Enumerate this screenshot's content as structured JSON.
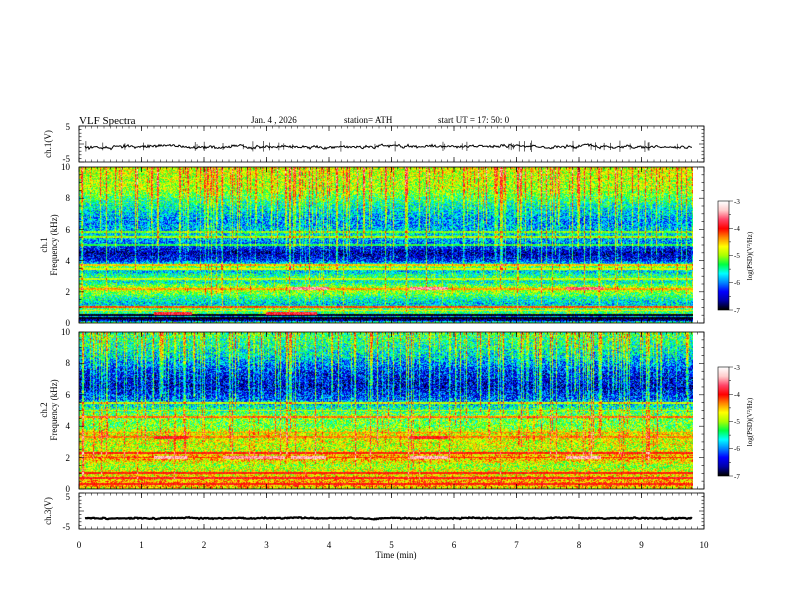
{
  "header": {
    "title": "VLF  Spectra",
    "date": "Jan. 4  , 2026",
    "station": "station= ATH",
    "start_ut": "start  UT  =   17: 50: 0"
  },
  "chart_data": {
    "type": "heatmap",
    "x_label": "Time  (min)",
    "x_range": [
      0,
      10
    ],
    "x_ticks": [
      "0",
      "1",
      "2",
      "3",
      "4",
      "5",
      "6",
      "7",
      "8",
      "9",
      "10"
    ],
    "data_end_min": 9.8,
    "colormap": [
      "#000000",
      "#0000aa",
      "#0000ff",
      "#0088ff",
      "#00ffff",
      "#00ff44",
      "#aaff00",
      "#ffff00",
      "#ff8800",
      "#ff0000",
      "#ff4466",
      "#ffcccc",
      "#ffffff"
    ],
    "panels": [
      {
        "id": "ch1-waveform",
        "type": "line",
        "y_label": "ch.1(V)",
        "y_ticks": [
          "5",
          "-5"
        ],
        "y_range": [
          -5,
          5
        ],
        "mean_level": -0.8,
        "noise_amplitude": 0.6,
        "spike_amplitude": 1.8,
        "color": "#000000"
      },
      {
        "id": "ch1-spectrogram",
        "type": "heatmap",
        "y_label_line1": "ch.1",
        "y_label_line2": "Frequency  (kHz)",
        "y_range": [
          0,
          10
        ],
        "y_ticks": [
          "0",
          "2",
          "4",
          "6",
          "8",
          "10"
        ],
        "colorbar_label": "log(PSD)(V²/Hz)",
        "colorbar_ticks": [
          "-3",
          "-4",
          "-5",
          "-6",
          "-7"
        ],
        "colorbar_range": [
          -7,
          -3
        ],
        "profile_khz": [
          [
            0,
            -4.9
          ],
          [
            0.2,
            -7.0
          ],
          [
            0.5,
            -5.4
          ],
          [
            0.9,
            -5.2
          ],
          [
            1.2,
            -5.8
          ],
          [
            1.6,
            -5.5
          ],
          [
            2.2,
            -4.8
          ],
          [
            2.6,
            -5.6
          ],
          [
            3.0,
            -5.4
          ],
          [
            3.3,
            -5.8
          ],
          [
            3.6,
            -5.1
          ],
          [
            4.0,
            -6.3
          ],
          [
            4.5,
            -6.6
          ],
          [
            5.0,
            -6.1
          ],
          [
            5.6,
            -5.7
          ],
          [
            6.5,
            -6.0
          ],
          [
            7.5,
            -5.6
          ],
          [
            8.5,
            -5.0
          ],
          [
            10.0,
            -4.8
          ]
        ],
        "lines_khz": [
          [
            0.3,
            -7.0
          ],
          [
            0.5,
            -7.0
          ],
          [
            0.8,
            -4.6
          ],
          [
            1.05,
            -4.2
          ],
          [
            2.2,
            -4.4
          ],
          [
            2.8,
            -4.9
          ],
          [
            3.45,
            -4.8
          ],
          [
            3.7,
            -4.5
          ],
          [
            5.0,
            -5.3
          ],
          [
            5.5,
            -5.0
          ],
          [
            5.85,
            -5.1
          ]
        ],
        "segments": [
          {
            "t": [
              3.4,
              4.0
            ],
            "f": 2.2,
            "v": -3.5
          },
          {
            "t": [
              5.3,
              5.9
            ],
            "f": 2.2,
            "v": -3.5
          },
          {
            "t": [
              7.8,
              8.4
            ],
            "f": 2.2,
            "v": -3.6
          },
          {
            "t": [
              1.2,
              1.8
            ],
            "f": 0.6,
            "v": -3.8
          },
          {
            "t": [
              3.0,
              3.8
            ],
            "f": 0.6,
            "v": -3.8
          }
        ],
        "sferic_density": 0.28,
        "sferic_strength": 1.3,
        "noise": 0.55
      },
      {
        "id": "ch2-spectrogram",
        "type": "heatmap",
        "y_label_line1": "ch.2",
        "y_label_line2": "Frequency  (kHz)",
        "y_range": [
          0,
          10
        ],
        "y_ticks": [
          "0",
          "2",
          "4",
          "6",
          "8",
          "10"
        ],
        "colorbar_label": "log(PSD)(V²/Hz)",
        "colorbar_ticks": [
          "-3",
          "-4",
          "-5",
          "-6",
          "-7"
        ],
        "colorbar_range": [
          -7,
          -3
        ],
        "profile_khz": [
          [
            0,
            -4.8
          ],
          [
            0.25,
            -4.3
          ],
          [
            0.6,
            -4.5
          ],
          [
            1.0,
            -4.7
          ],
          [
            1.5,
            -5.0
          ],
          [
            2.0,
            -4.4
          ],
          [
            2.5,
            -4.9
          ],
          [
            3.0,
            -4.8
          ],
          [
            3.5,
            -4.7
          ],
          [
            4.0,
            -5.2
          ],
          [
            4.6,
            -5.1
          ],
          [
            5.2,
            -5.6
          ],
          [
            5.8,
            -6.2
          ],
          [
            6.5,
            -6.5
          ],
          [
            7.5,
            -6.3
          ],
          [
            8.5,
            -5.7
          ],
          [
            10.0,
            -5.3
          ]
        ],
        "lines_khz": [
          [
            0.3,
            -4.0
          ],
          [
            0.7,
            -3.9
          ],
          [
            1.0,
            -4.0
          ],
          [
            2.0,
            -4.1
          ],
          [
            2.3,
            -4.0
          ],
          [
            3.3,
            -4.3
          ],
          [
            3.6,
            -4.4
          ],
          [
            4.6,
            -4.3
          ],
          [
            5.0,
            -4.9
          ],
          [
            5.5,
            -4.9
          ]
        ],
        "segments": [
          {
            "t": [
              1.2,
              1.75
            ],
            "f": 2.0,
            "v": -3.4
          },
          {
            "t": [
              2.3,
              3.3
            ],
            "f": 2.0,
            "v": -3.5
          },
          {
            "t": [
              3.4,
              3.95
            ],
            "f": 2.0,
            "v": -3.4
          },
          {
            "t": [
              5.3,
              5.9
            ],
            "f": 2.0,
            "v": -3.4
          },
          {
            "t": [
              7.8,
              8.35
            ],
            "f": 2.0,
            "v": -3.4
          },
          {
            "t": [
              1.2,
              1.75
            ],
            "f": 3.3,
            "v": -3.9
          },
          {
            "t": [
              5.3,
              5.9
            ],
            "f": 3.3,
            "v": -3.9
          }
        ],
        "sferic_density": 0.3,
        "sferic_strength": 1.3,
        "noise": 0.6
      },
      {
        "id": "ch3-waveform",
        "type": "line",
        "y_label": "ch.3(V)",
        "y_ticks": [
          "5",
          "-5"
        ],
        "y_range": [
          -5,
          5
        ],
        "mean_level": -2.0,
        "noise_amplitude": 0.25,
        "spike_amplitude": 0.2,
        "color": "#000000"
      }
    ]
  }
}
